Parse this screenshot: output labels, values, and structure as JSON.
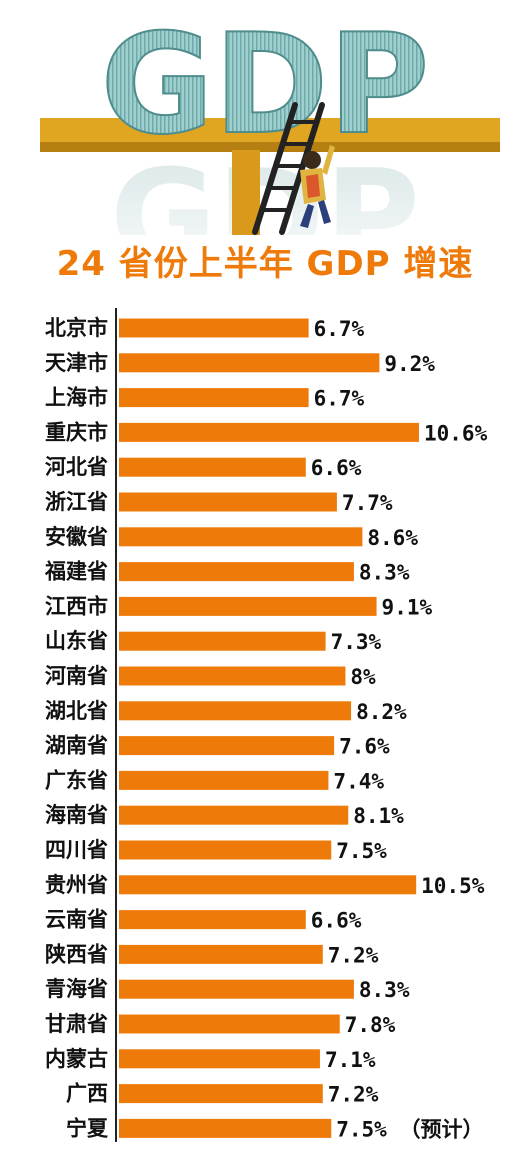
{
  "banner": {
    "headline_text": "GDP",
    "faded_text": "GDP",
    "colors": {
      "letters": "#8fc7c6",
      "beam": "#e0a521",
      "ladder": "#2a2a2a",
      "climber": "#d9572a"
    }
  },
  "chart_data": {
    "type": "bar",
    "orientation": "horizontal",
    "title": "24 省份上半年 GDP 增速",
    "categories": [
      "北京市",
      "天津市",
      "上海市",
      "重庆市",
      "河北省",
      "浙江省",
      "安徽省",
      "福建省",
      "江西市",
      "山东省",
      "河南省",
      "湖北省",
      "湖南省",
      "广东省",
      "海南省",
      "四川省",
      "贵州省",
      "云南省",
      "陕西省",
      "青海省",
      "甘肃省",
      "内蒙古",
      "广西",
      "宁夏"
    ],
    "values": [
      6.7,
      9.2,
      6.7,
      10.6,
      6.6,
      7.7,
      8.6,
      8.3,
      9.1,
      7.3,
      8,
      8.2,
      7.6,
      7.4,
      8.1,
      7.5,
      10.5,
      6.6,
      7.2,
      8.3,
      7.8,
      7.1,
      7.2,
      7.5
    ],
    "value_labels": [
      "6.7%",
      "9.2%",
      "6.7%",
      "10.6%",
      "6.6%",
      "7.7%",
      "8.6%",
      "8.3%",
      "9.1%",
      "7.3%",
      "8%",
      "8.2%",
      "7.6%",
      "7.4%",
      "8.1%",
      "7.5%",
      "10.5%",
      "6.6%",
      "7.2%",
      "8.3%",
      "7.8%",
      "7.1%",
      "7.2%",
      "7.5% （预计）"
    ],
    "unit": "%",
    "xlabel": "",
    "ylabel": "",
    "grid": false,
    "legend": "none",
    "colors": {
      "bar": "#ee7a0a",
      "title": "#ee7a0a",
      "axis": "#222222"
    }
  }
}
